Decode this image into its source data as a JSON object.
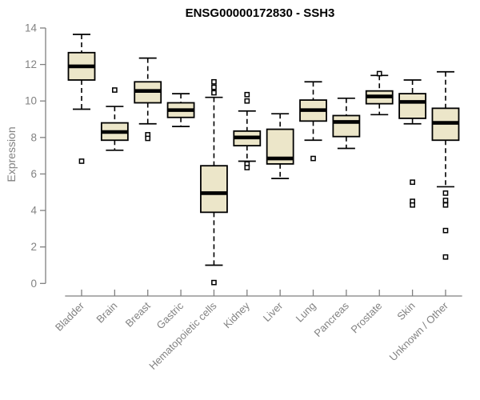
{
  "chart_data": {
    "type": "boxplot",
    "title": "ENSG00000172830 - SSH3",
    "xlabel": "",
    "ylabel": "Expression",
    "ylim": [
      0,
      14
    ],
    "yticks": [
      0,
      2,
      4,
      6,
      8,
      10,
      12,
      14
    ],
    "legend": "none",
    "grid": false,
    "colors": {
      "box_fill": "#ece6c9",
      "box_stroke": "#000000",
      "axis": "#808080",
      "tick_text": "#828282",
      "title_text": "#000000"
    },
    "categories": [
      "Bladder",
      "Brain",
      "Breast",
      "Gastric",
      "Hematopoietic cells",
      "Kidney",
      "Liver",
      "Lung",
      "Pancreas",
      "Prostate",
      "Skin",
      "Unknown / Other"
    ],
    "boxes": [
      {
        "category": "Bladder",
        "low": 9.55,
        "q1": 11.15,
        "median": 11.9,
        "q3": 12.65,
        "high": 13.65,
        "outliers": [
          6.7
        ]
      },
      {
        "category": "Brain",
        "low": 7.3,
        "q1": 7.85,
        "median": 8.3,
        "q3": 8.8,
        "high": 9.7,
        "outliers": [
          10.6
        ]
      },
      {
        "category": "Breast",
        "low": 8.75,
        "q1": 9.9,
        "median": 10.55,
        "q3": 11.05,
        "high": 12.35,
        "outliers": [
          8.15,
          7.95
        ]
      },
      {
        "category": "Gastric",
        "low": 8.6,
        "q1": 9.1,
        "median": 9.5,
        "q3": 9.9,
        "high": 10.4,
        "outliers": []
      },
      {
        "category": "Hematopoietic cells",
        "low": 1.0,
        "q1": 3.9,
        "median": 4.95,
        "q3": 6.45,
        "high": 10.2,
        "outliers": [
          11.05,
          10.75,
          10.45,
          0.05
        ]
      },
      {
        "category": "Kidney",
        "low": 6.7,
        "q1": 7.55,
        "median": 8.0,
        "q3": 8.35,
        "high": 9.45,
        "outliers": [
          10.35,
          10.0,
          6.55,
          6.35
        ]
      },
      {
        "category": "Liver",
        "low": 5.75,
        "q1": 6.55,
        "median": 6.85,
        "q3": 8.45,
        "high": 9.3,
        "outliers": []
      },
      {
        "category": "Lung",
        "low": 7.85,
        "q1": 8.9,
        "median": 9.5,
        "q3": 10.05,
        "high": 11.05,
        "outliers": [
          6.85
        ]
      },
      {
        "category": "Pancreas",
        "low": 7.4,
        "q1": 8.05,
        "median": 8.85,
        "q3": 9.2,
        "high": 10.15,
        "outliers": []
      },
      {
        "category": "Prostate",
        "low": 9.25,
        "q1": 9.85,
        "median": 10.25,
        "q3": 10.55,
        "high": 11.4,
        "outliers": [
          11.5
        ]
      },
      {
        "category": "Skin",
        "low": 8.75,
        "q1": 9.05,
        "median": 9.95,
        "q3": 10.4,
        "high": 11.15,
        "outliers": [
          5.55,
          4.5,
          4.3
        ]
      },
      {
        "category": "Unknown / Other",
        "low": 5.3,
        "q1": 7.85,
        "median": 8.8,
        "q3": 9.6,
        "high": 11.6,
        "outliers": [
          4.95,
          4.55,
          4.3,
          2.9,
          1.45
        ]
      }
    ]
  }
}
